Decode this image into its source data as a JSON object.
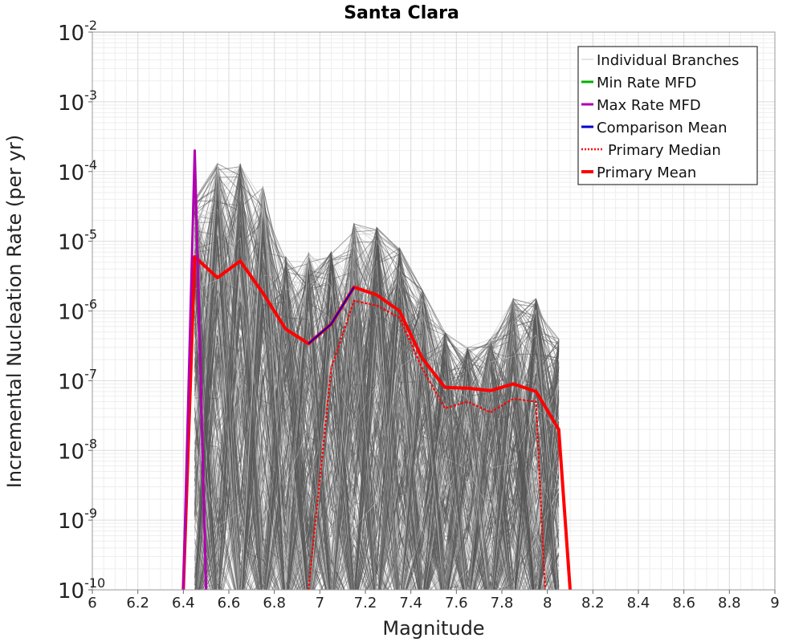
{
  "chart_data": {
    "type": "line",
    "title": "Santa Clara",
    "xlabel": "Magnitude",
    "ylabel": "Incremental Nucleation Rate (per yr)",
    "xlim": [
      6,
      9
    ],
    "ylim": [
      1e-10,
      0.01
    ],
    "y_scale": "log",
    "x_ticks": [
      "6",
      "6.2",
      "6.4",
      "6.6",
      "6.8",
      "7",
      "7.2",
      "7.4",
      "7.6",
      "7.8",
      "8",
      "8.2",
      "8.4",
      "8.6",
      "8.8",
      "9"
    ],
    "y_tick_exponents": [
      "-10",
      "-9",
      "-8",
      "-7",
      "-6",
      "-5",
      "-4",
      "-3",
      "-2"
    ],
    "y_tick_base": "10",
    "grid": true,
    "legend_position": "top-right",
    "legend": [
      {
        "label": "Individual Branches",
        "color": "#c8c8c8",
        "style": "solid"
      },
      {
        "label": "Min Rate MFD",
        "color": "#00b000",
        "style": "solid"
      },
      {
        "label": "Max Rate MFD",
        "color": "#b000b0",
        "style": "solid"
      },
      {
        "label": "Comparison Mean",
        "color": "#0000cc",
        "style": "solid"
      },
      {
        "label": "Primary Median",
        "color": "#ff0000",
        "style": "dotted"
      },
      {
        "label": "Primary Mean",
        "color": "#ff0000",
        "style": "solid"
      }
    ],
    "series": [
      {
        "name": "Primary Mean",
        "color": "#ff0000",
        "x": [
          6.4,
          6.45,
          6.55,
          6.65,
          6.75,
          6.85,
          6.95,
          7.05,
          7.15,
          7.25,
          7.35,
          7.45,
          7.55,
          7.65,
          7.75,
          7.85,
          7.95,
          8.05,
          8.1
        ],
        "y": [
          1e-10,
          6e-06,
          3e-06,
          5.2e-06,
          1.8e-06,
          5.5e-07,
          3.4e-07,
          6.5e-07,
          2.2e-06,
          1.7e-06,
          1e-06,
          2.1e-07,
          8e-08,
          7.8e-08,
          7.2e-08,
          9e-08,
          7e-08,
          2e-08,
          1e-10
        ]
      },
      {
        "name": "Primary Median",
        "color": "#ff0000",
        "x": [
          6.95,
          7.05,
          7.15,
          7.25,
          7.35,
          7.45,
          7.55,
          7.65,
          7.75,
          7.85,
          7.95,
          7.99
        ],
        "y": [
          1e-10,
          1.5e-07,
          1.4e-06,
          1.2e-06,
          8e-07,
          1.5e-07,
          4e-08,
          5e-08,
          3.5e-08,
          5.5e-08,
          5e-08,
          1e-10
        ]
      },
      {
        "name": "Max Rate MFD",
        "color": "#b000b0",
        "x": [
          6.4,
          6.45,
          6.5
        ],
        "y": [
          1e-10,
          0.0002,
          1e-10
        ]
      },
      {
        "name": "Comparison Mean",
        "color": "#0000cc",
        "x": [
          6.95,
          7.05,
          7.15
        ],
        "y": [
          3.4e-07,
          6.5e-07,
          2.2e-06
        ]
      }
    ],
    "branch_envelope": {
      "x": [
        6.45,
        6.55,
        6.65,
        6.75,
        6.85,
        6.95,
        7.05,
        7.15,
        7.25,
        7.35,
        7.45,
        7.55,
        7.65,
        7.75,
        7.85,
        7.95,
        8.05
      ],
      "peak": [
        4e-05,
        0.00013,
        0.00013,
        6e-05,
        6e-06,
        7e-06,
        7e-06,
        1.8e-05,
        1.6e-05,
        8e-06,
        2e-06,
        5e-07,
        3e-07,
        4e-07,
        1.5e-06,
        1.5e-06,
        4e-07
      ]
    }
  }
}
